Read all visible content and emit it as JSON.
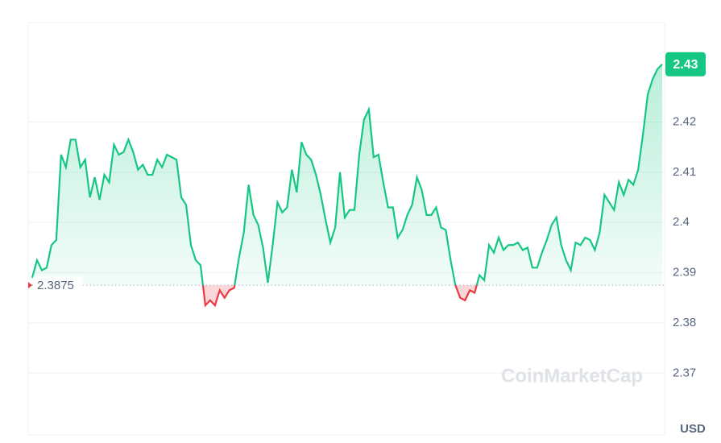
{
  "chart_data": {
    "type": "line",
    "color": "#16c784",
    "down_color": "#ea3943",
    "values": [
      2.389,
      2.3925,
      2.3905,
      2.391,
      2.3955,
      2.3965,
      2.4135,
      2.411,
      2.4165,
      2.4165,
      2.411,
      2.4125,
      2.405,
      2.409,
      2.4045,
      2.4095,
      2.408,
      2.4155,
      2.4135,
      2.414,
      2.4165,
      2.414,
      2.4105,
      2.4115,
      2.4095,
      2.4095,
      2.4125,
      2.411,
      2.4135,
      2.413,
      2.4125,
      2.405,
      2.4035,
      2.3955,
      2.3925,
      2.3915,
      2.3835,
      2.3845,
      2.3835,
      2.3865,
      2.385,
      2.3865,
      2.387,
      2.393,
      2.398,
      2.4075,
      2.4015,
      2.3995,
      2.395,
      2.388,
      2.3955,
      2.404,
      2.402,
      2.403,
      2.4105,
      2.406,
      2.416,
      2.4135,
      2.4125,
      2.4095,
      2.4055,
      2.4005,
      2.396,
      2.399,
      2.41,
      2.401,
      2.4025,
      2.4025,
      2.4135,
      2.4205,
      2.4225,
      2.413,
      2.4135,
      2.408,
      2.403,
      2.403,
      2.397,
      2.3985,
      2.4015,
      2.4035,
      2.409,
      2.4065,
      2.4015,
      2.4015,
      2.403,
      2.399,
      2.3985,
      2.3925,
      2.3875,
      2.385,
      2.3845,
      2.3865,
      2.386,
      2.3895,
      2.3885,
      2.3955,
      2.394,
      2.397,
      2.3945,
      2.3955,
      2.3955,
      2.396,
      2.3945,
      2.395,
      2.391,
      2.391,
      2.394,
      2.3965,
      2.3995,
      2.401,
      2.3955,
      2.3925,
      2.3905,
      2.396,
      2.3955,
      2.397,
      2.3965,
      2.3945,
      2.398,
      2.4055,
      2.404,
      2.4025,
      2.408,
      2.4055,
      2.4085,
      2.4075,
      2.4105,
      2.4175,
      2.4255,
      2.4285,
      2.4305,
      2.4315
    ],
    "baseline": 2.3875,
    "last_price": {
      "value": 2.4315,
      "label": "2.43"
    },
    "ylim": [
      2.3577,
      2.4398
    ],
    "yticks": [
      2.37,
      2.38,
      2.39,
      2.4,
      2.41,
      2.42
    ],
    "grid": true,
    "currency": "USD",
    "watermark": "CoinMarketCap"
  }
}
